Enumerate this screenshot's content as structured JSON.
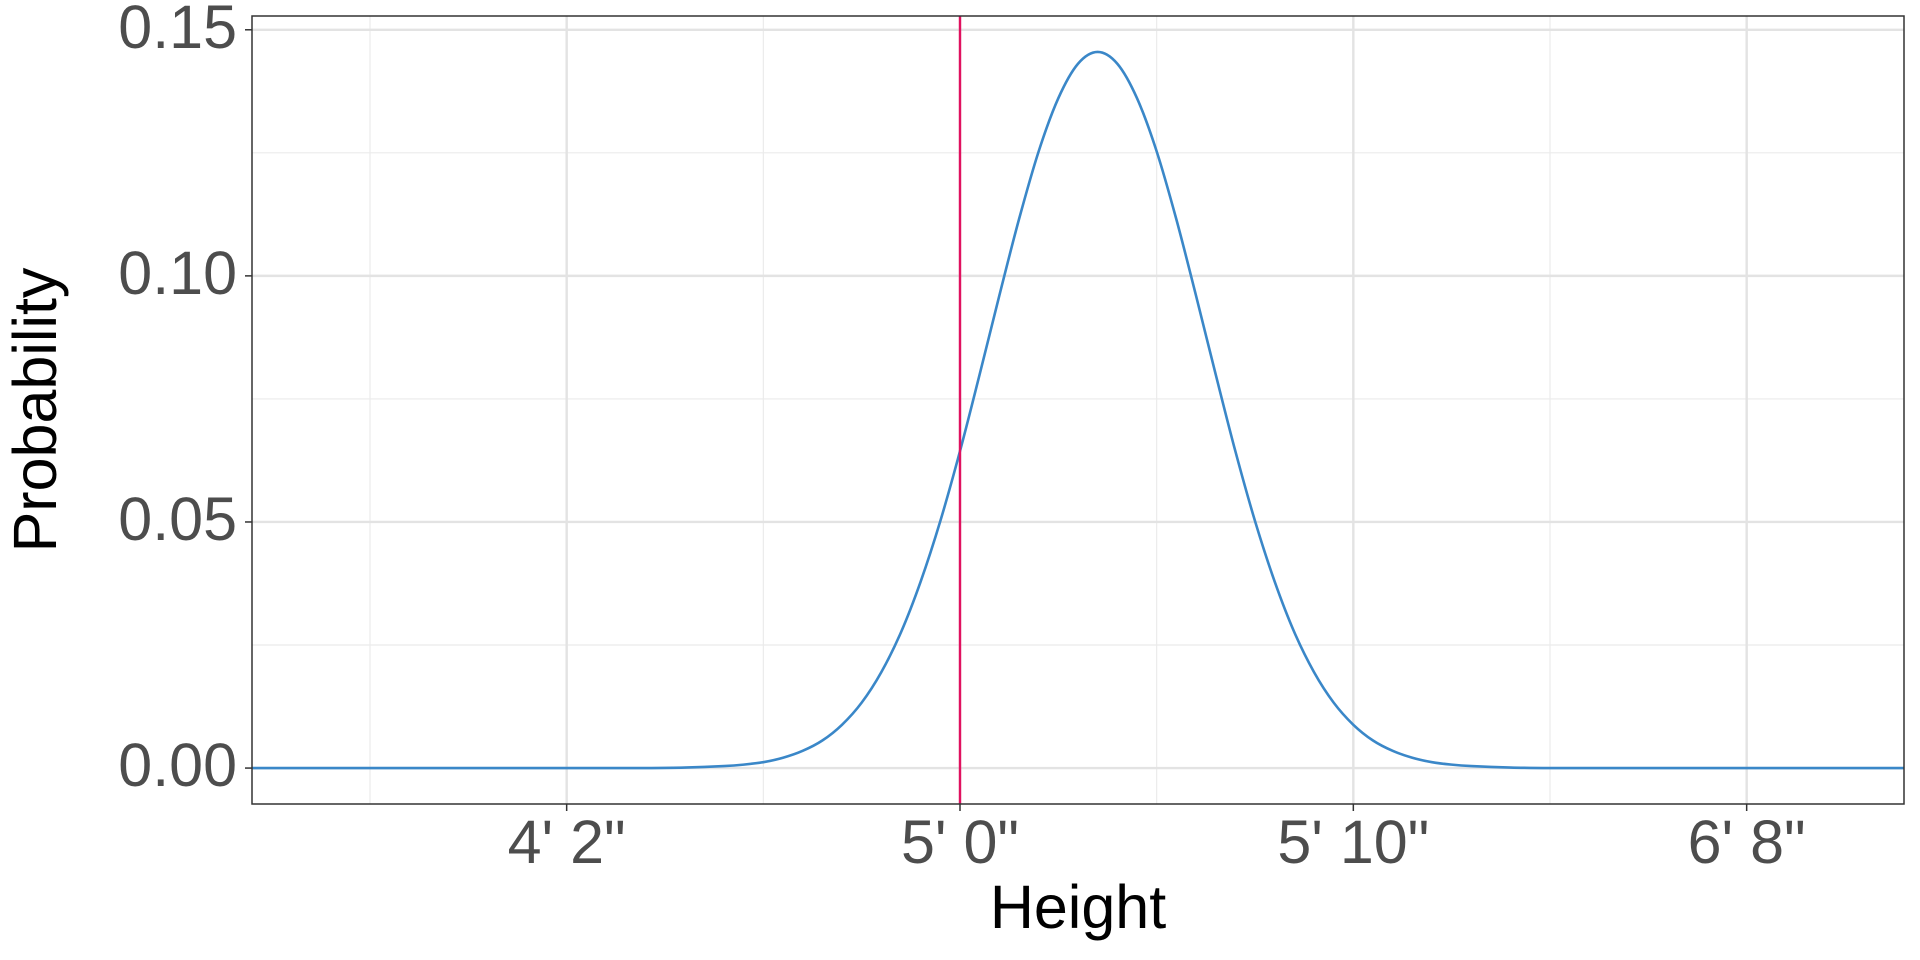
{
  "chart_data": {
    "type": "line",
    "x_label": "Height",
    "y_label": "Probability",
    "x": [
      42,
      43,
      44,
      45,
      46,
      47,
      48,
      49,
      50,
      51,
      52,
      53,
      54,
      54.5,
      55,
      55.5,
      56,
      56.5,
      57,
      57.5,
      58,
      58.5,
      59,
      59.5,
      60,
      60.5,
      61,
      61.5,
      62,
      62.5,
      63,
      63.5,
      64,
      64.5,
      65,
      65.5,
      66,
      66.5,
      67,
      67.5,
      68,
      68.5,
      69,
      69.5,
      70,
      70.5,
      71,
      71.5,
      72,
      72.5,
      73,
      74,
      75,
      76,
      77,
      78,
      79,
      80,
      81,
      82,
      83,
      84
    ],
    "series": [
      {
        "color": "#3a87c8",
        "values": [
          0,
          0,
          0,
          0,
          0,
          0,
          0,
          0,
          0,
          0,
          0,
          0.0001,
          0.0004,
          0.0007,
          0.0012,
          0.0021,
          0.0035,
          0.0056,
          0.0088,
          0.0133,
          0.0195,
          0.0276,
          0.0379,
          0.0502,
          0.0644,
          0.08,
          0.096,
          0.1115,
          0.1253,
          0.1361,
          0.1431,
          0.1455,
          0.1431,
          0.1361,
          0.1253,
          0.1115,
          0.096,
          0.08,
          0.0644,
          0.0502,
          0.0379,
          0.0276,
          0.0195,
          0.0133,
          0.0088,
          0.0056,
          0.0035,
          0.0021,
          0.0012,
          0.0007,
          0.0004,
          0.0001,
          0,
          0,
          0,
          0,
          0,
          0,
          0,
          0,
          0,
          0
        ]
      }
    ],
    "vline": {
      "value": 60,
      "color": "#e0115f"
    },
    "xlim": [
      42,
      84
    ],
    "ylim": [
      -0.0073,
      0.1528
    ],
    "xticks": [
      {
        "value": 50,
        "label": "4' 2\""
      },
      {
        "value": 60,
        "label": "5' 0\""
      },
      {
        "value": 70,
        "label": "5' 10\""
      },
      {
        "value": 80,
        "label": "6' 8\""
      }
    ],
    "yticks": [
      {
        "value": 0,
        "label": "0.00"
      },
      {
        "value": 0.05,
        "label": "0.05"
      },
      {
        "value": 0.1,
        "label": "0.10"
      },
      {
        "value": 0.15,
        "label": "0.15"
      }
    ],
    "x_minor_ticks": [
      45,
      55,
      65,
      75
    ],
    "y_minor_ticks": [
      0.025,
      0.075,
      0.125
    ],
    "grid": true
  }
}
